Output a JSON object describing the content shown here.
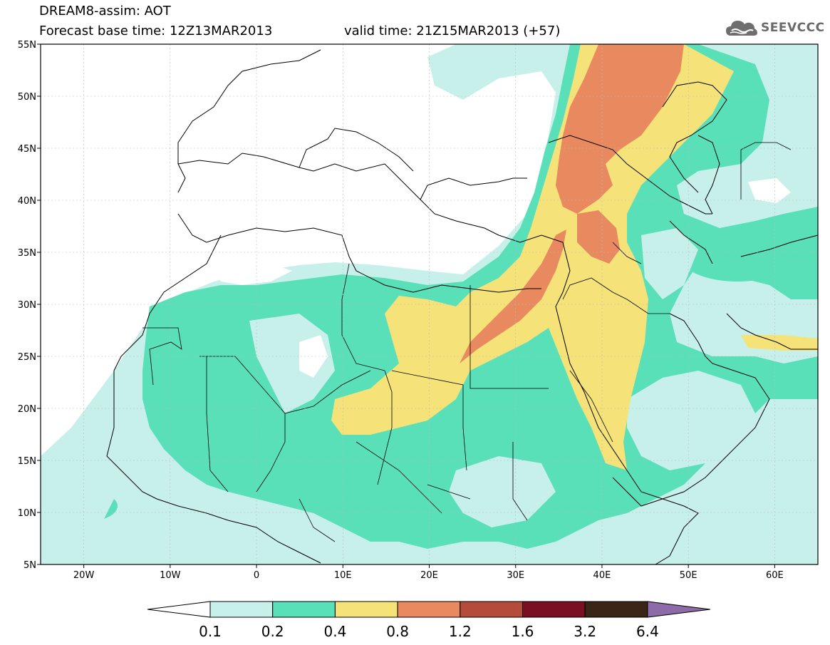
{
  "header": {
    "title": "DREAM8-assim: AOT",
    "base_time": "Forecast base time: 12Z13MAR2013",
    "valid_time": "valid time: 21Z15MAR2013 (+57)",
    "logo_text": "SEEVCCC",
    "logo_icon": "cloud-icon"
  },
  "map": {
    "lon_range": [
      -25,
      65
    ],
    "lat_range": [
      5,
      55
    ],
    "lon_tick_labels": [
      "20W",
      "10W",
      "0",
      "10E",
      "20E",
      "30E",
      "40E",
      "50E",
      "60E"
    ],
    "lat_tick_labels": [
      "55N",
      "50N",
      "45N",
      "40N",
      "35N",
      "30N",
      "25N",
      "20N",
      "15N",
      "10N",
      "5N"
    ],
    "grid": true,
    "background_color": "#ffffff"
  },
  "colorbar": {
    "labels": [
      "0.1",
      "0.2",
      "0.4",
      "0.8",
      "1.2",
      "1.6",
      "3.2",
      "6.4"
    ],
    "colors": [
      "#c8f0ea",
      "#5ae0b9",
      "#f5e278",
      "#e8895f",
      "#b54c3b",
      "#7a0f24",
      "#3b2517",
      "#8f6aa8"
    ],
    "below_color": "#ffffff"
  },
  "fields": {
    "c01": "#c8f0ea",
    "c02": "#5ae0b9",
    "c04": "#f5e278",
    "c08": "#e8895f"
  }
}
